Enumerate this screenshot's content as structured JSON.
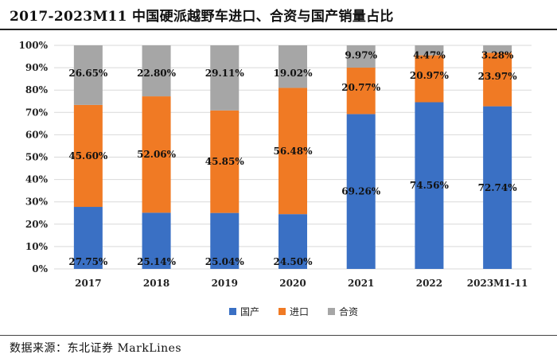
{
  "header": {
    "title": "2017-2023M11 中国硬派越野车进口、合资与国产销量占比"
  },
  "footer": {
    "source": "数据来源：东北证券 MarkLines"
  },
  "colors": {
    "domestic": "#3a70c4",
    "import": "#f07a24",
    "jv": "#a6a6a6",
    "grid": "#d9d9d9"
  },
  "chart_data": {
    "type": "bar",
    "stacked": true,
    "title": "2017-2023M11 中国硬派越野车进口、合资与国产销量占比",
    "xlabel": "",
    "ylabel": "",
    "ylim": [
      0,
      100
    ],
    "yticks": [
      "0%",
      "10%",
      "20%",
      "30%",
      "40%",
      "50%",
      "60%",
      "70%",
      "80%",
      "90%",
      "100%"
    ],
    "categories": [
      "2017",
      "2018",
      "2019",
      "2020",
      "2021",
      "2022",
      "2023M1-11"
    ],
    "series": [
      {
        "name": "国产",
        "color_key": "domestic",
        "values": [
          27.75,
          25.14,
          25.04,
          24.5,
          69.26,
          74.56,
          72.74
        ],
        "labels": [
          "27.75%",
          "25.14%",
          "25.04%",
          "24.50%",
          "69.26%",
          "74.56%",
          "72.74%"
        ]
      },
      {
        "name": "进口",
        "color_key": "import",
        "values": [
          45.6,
          52.06,
          45.85,
          56.48,
          20.77,
          20.97,
          23.97
        ],
        "labels": [
          "45.60%",
          "52.06%",
          "45.85%",
          "56.48%",
          "20.77%",
          "20.97%",
          "23.97%"
        ]
      },
      {
        "name": "合资",
        "color_key": "jv",
        "values": [
          26.65,
          22.8,
          29.11,
          19.02,
          9.97,
          4.47,
          3.28
        ],
        "labels": [
          "26.65%",
          "22.80%",
          "29.11%",
          "19.02%",
          "9.97%",
          "4.47%",
          "3.28%"
        ]
      }
    ],
    "legend": {
      "position": "bottom",
      "entries": [
        "国产",
        "进口",
        "合资"
      ]
    },
    "grid": true
  }
}
